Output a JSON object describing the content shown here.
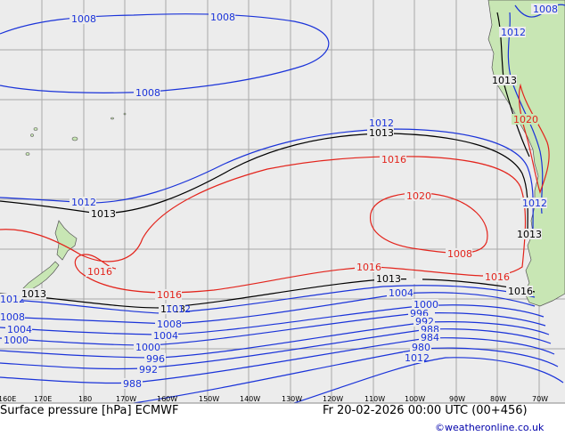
{
  "map": {
    "title": "Surface pressure [hPa] ECMWF",
    "valid_time": "Fr 20-02-2026 00:00 UTC (00+456)",
    "credit": "©weatheronline.co.uk",
    "colors": {
      "background": "#ececec",
      "land": "#c8e6b4",
      "grid": "#a8a8a8",
      "low": "#1a33d9",
      "ref": "#000000",
      "high": "#e3241c"
    },
    "longitude_ticks": [
      "160E",
      "170E",
      "180",
      "170W",
      "160W",
      "150W",
      "140W",
      "130W",
      "120W",
      "110W",
      "100W",
      "90W",
      "80W",
      "70W"
    ],
    "isobar_labels": [
      {
        "value": "1008",
        "kind": "low"
      },
      {
        "value": "1008",
        "kind": "low"
      },
      {
        "value": "1008",
        "kind": "low"
      },
      {
        "value": "1008",
        "kind": "low"
      },
      {
        "value": "1012",
        "kind": "low"
      },
      {
        "value": "1012",
        "kind": "low"
      },
      {
        "value": "1012",
        "kind": "low"
      },
      {
        "value": "1012",
        "kind": "low"
      },
      {
        "value": "1012",
        "kind": "low"
      },
      {
        "value": "1013",
        "kind": "ref"
      },
      {
        "value": "1013",
        "kind": "ref"
      },
      {
        "value": "1013",
        "kind": "ref"
      },
      {
        "value": "1013",
        "kind": "ref"
      },
      {
        "value": "1013",
        "kind": "ref"
      },
      {
        "value": "1013",
        "kind": "ref"
      },
      {
        "value": "1013",
        "kind": "ref"
      },
      {
        "value": "1016",
        "kind": "high"
      },
      {
        "value": "1016",
        "kind": "high"
      },
      {
        "value": "1016",
        "kind": "high"
      },
      {
        "value": "1016",
        "kind": "high"
      },
      {
        "value": "1016",
        "kind": "high"
      },
      {
        "value": "1016",
        "kind": "high"
      },
      {
        "value": "1020",
        "kind": "high"
      },
      {
        "value": "1020",
        "kind": "high"
      },
      {
        "value": "1008",
        "kind": "low"
      },
      {
        "value": "1008",
        "kind": "low"
      },
      {
        "value": "1008",
        "kind": "low"
      },
      {
        "value": "1004",
        "kind": "low"
      },
      {
        "value": "1004",
        "kind": "low"
      },
      {
        "value": "1004",
        "kind": "low"
      },
      {
        "value": "1000",
        "kind": "low"
      },
      {
        "value": "1000",
        "kind": "low"
      },
      {
        "value": "1000",
        "kind": "low"
      },
      {
        "value": "996",
        "kind": "low"
      },
      {
        "value": "996",
        "kind": "low"
      },
      {
        "value": "992",
        "kind": "low"
      },
      {
        "value": "992",
        "kind": "low"
      },
      {
        "value": "988",
        "kind": "low"
      },
      {
        "value": "988",
        "kind": "low"
      },
      {
        "value": "984",
        "kind": "low"
      },
      {
        "value": "980",
        "kind": "low"
      },
      {
        "value": "1012",
        "kind": "low"
      },
      {
        "value": "1012",
        "kind": "low"
      }
    ]
  }
}
